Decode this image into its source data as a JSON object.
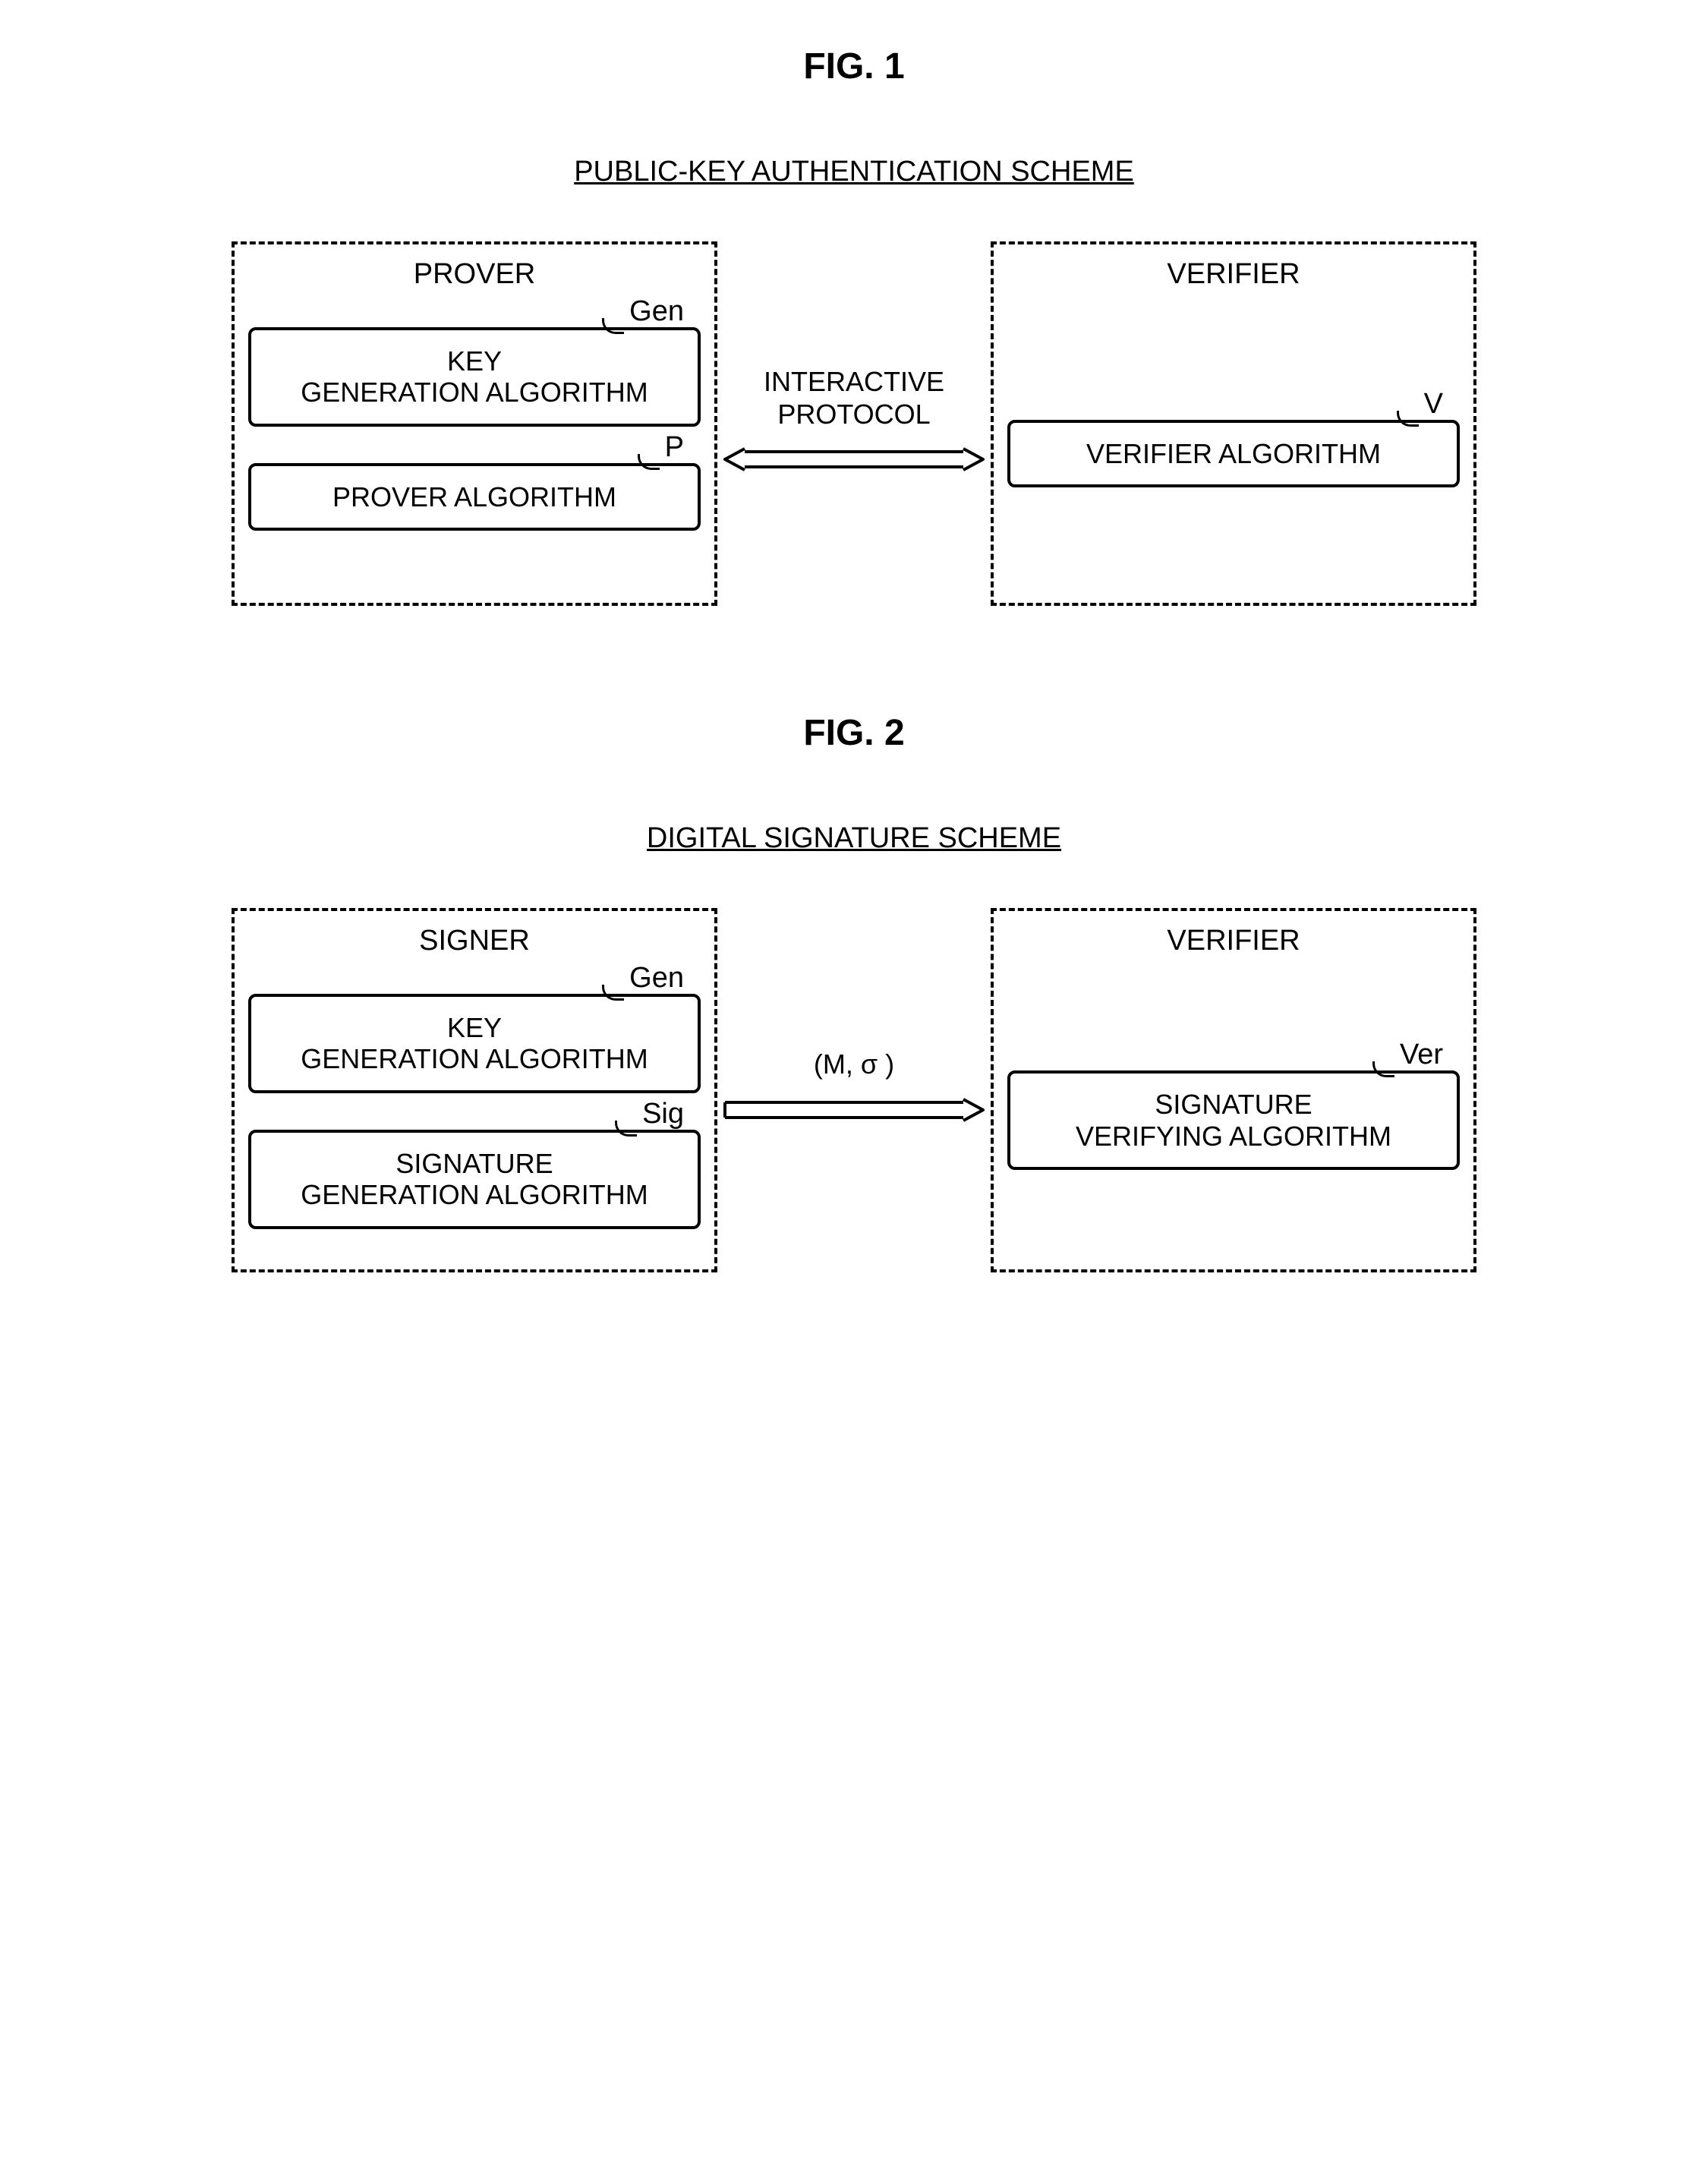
{
  "fig1": {
    "title": "FIG. 1",
    "scheme_title": "PUBLIC-KEY AUTHENTICATION SCHEME",
    "left": {
      "party": "PROVER",
      "algo1_label": "Gen",
      "algo1_text": "KEY\nGENERATION ALGORITHM",
      "algo2_label": "P",
      "algo2_text": "PROVER ALGORITHM"
    },
    "arrow_label": "INTERACTIVE\nPROTOCOL",
    "arrow_type": "double",
    "right": {
      "party": "VERIFIER",
      "algo_label": "V",
      "algo_text": "VERIFIER ALGORITHM"
    }
  },
  "fig2": {
    "title": "FIG. 2",
    "scheme_title": "DIGITAL SIGNATURE SCHEME",
    "left": {
      "party": "SIGNER",
      "algo1_label": "Gen",
      "algo1_text": "KEY\nGENERATION ALGORITHM",
      "algo2_label": "Sig",
      "algo2_text": "SIGNATURE\nGENERATION ALGORITHM"
    },
    "arrow_label": "(M, σ )",
    "arrow_type": "single",
    "right": {
      "party": "VERIFIER",
      "algo_label": "Ver",
      "algo_text": "SIGNATURE\nVERIFYING ALGORITHM"
    }
  },
  "style": {
    "stroke": "#000000",
    "stroke_width": 4,
    "border_radius": 10,
    "dash": "12 10",
    "font_family": "Arial, Helvetica, sans-serif",
    "fig_title_fontsize": 48,
    "scheme_title_fontsize": 38,
    "party_title_fontsize": 38,
    "algo_fontsize": 36,
    "label_fontsize": 38
  }
}
